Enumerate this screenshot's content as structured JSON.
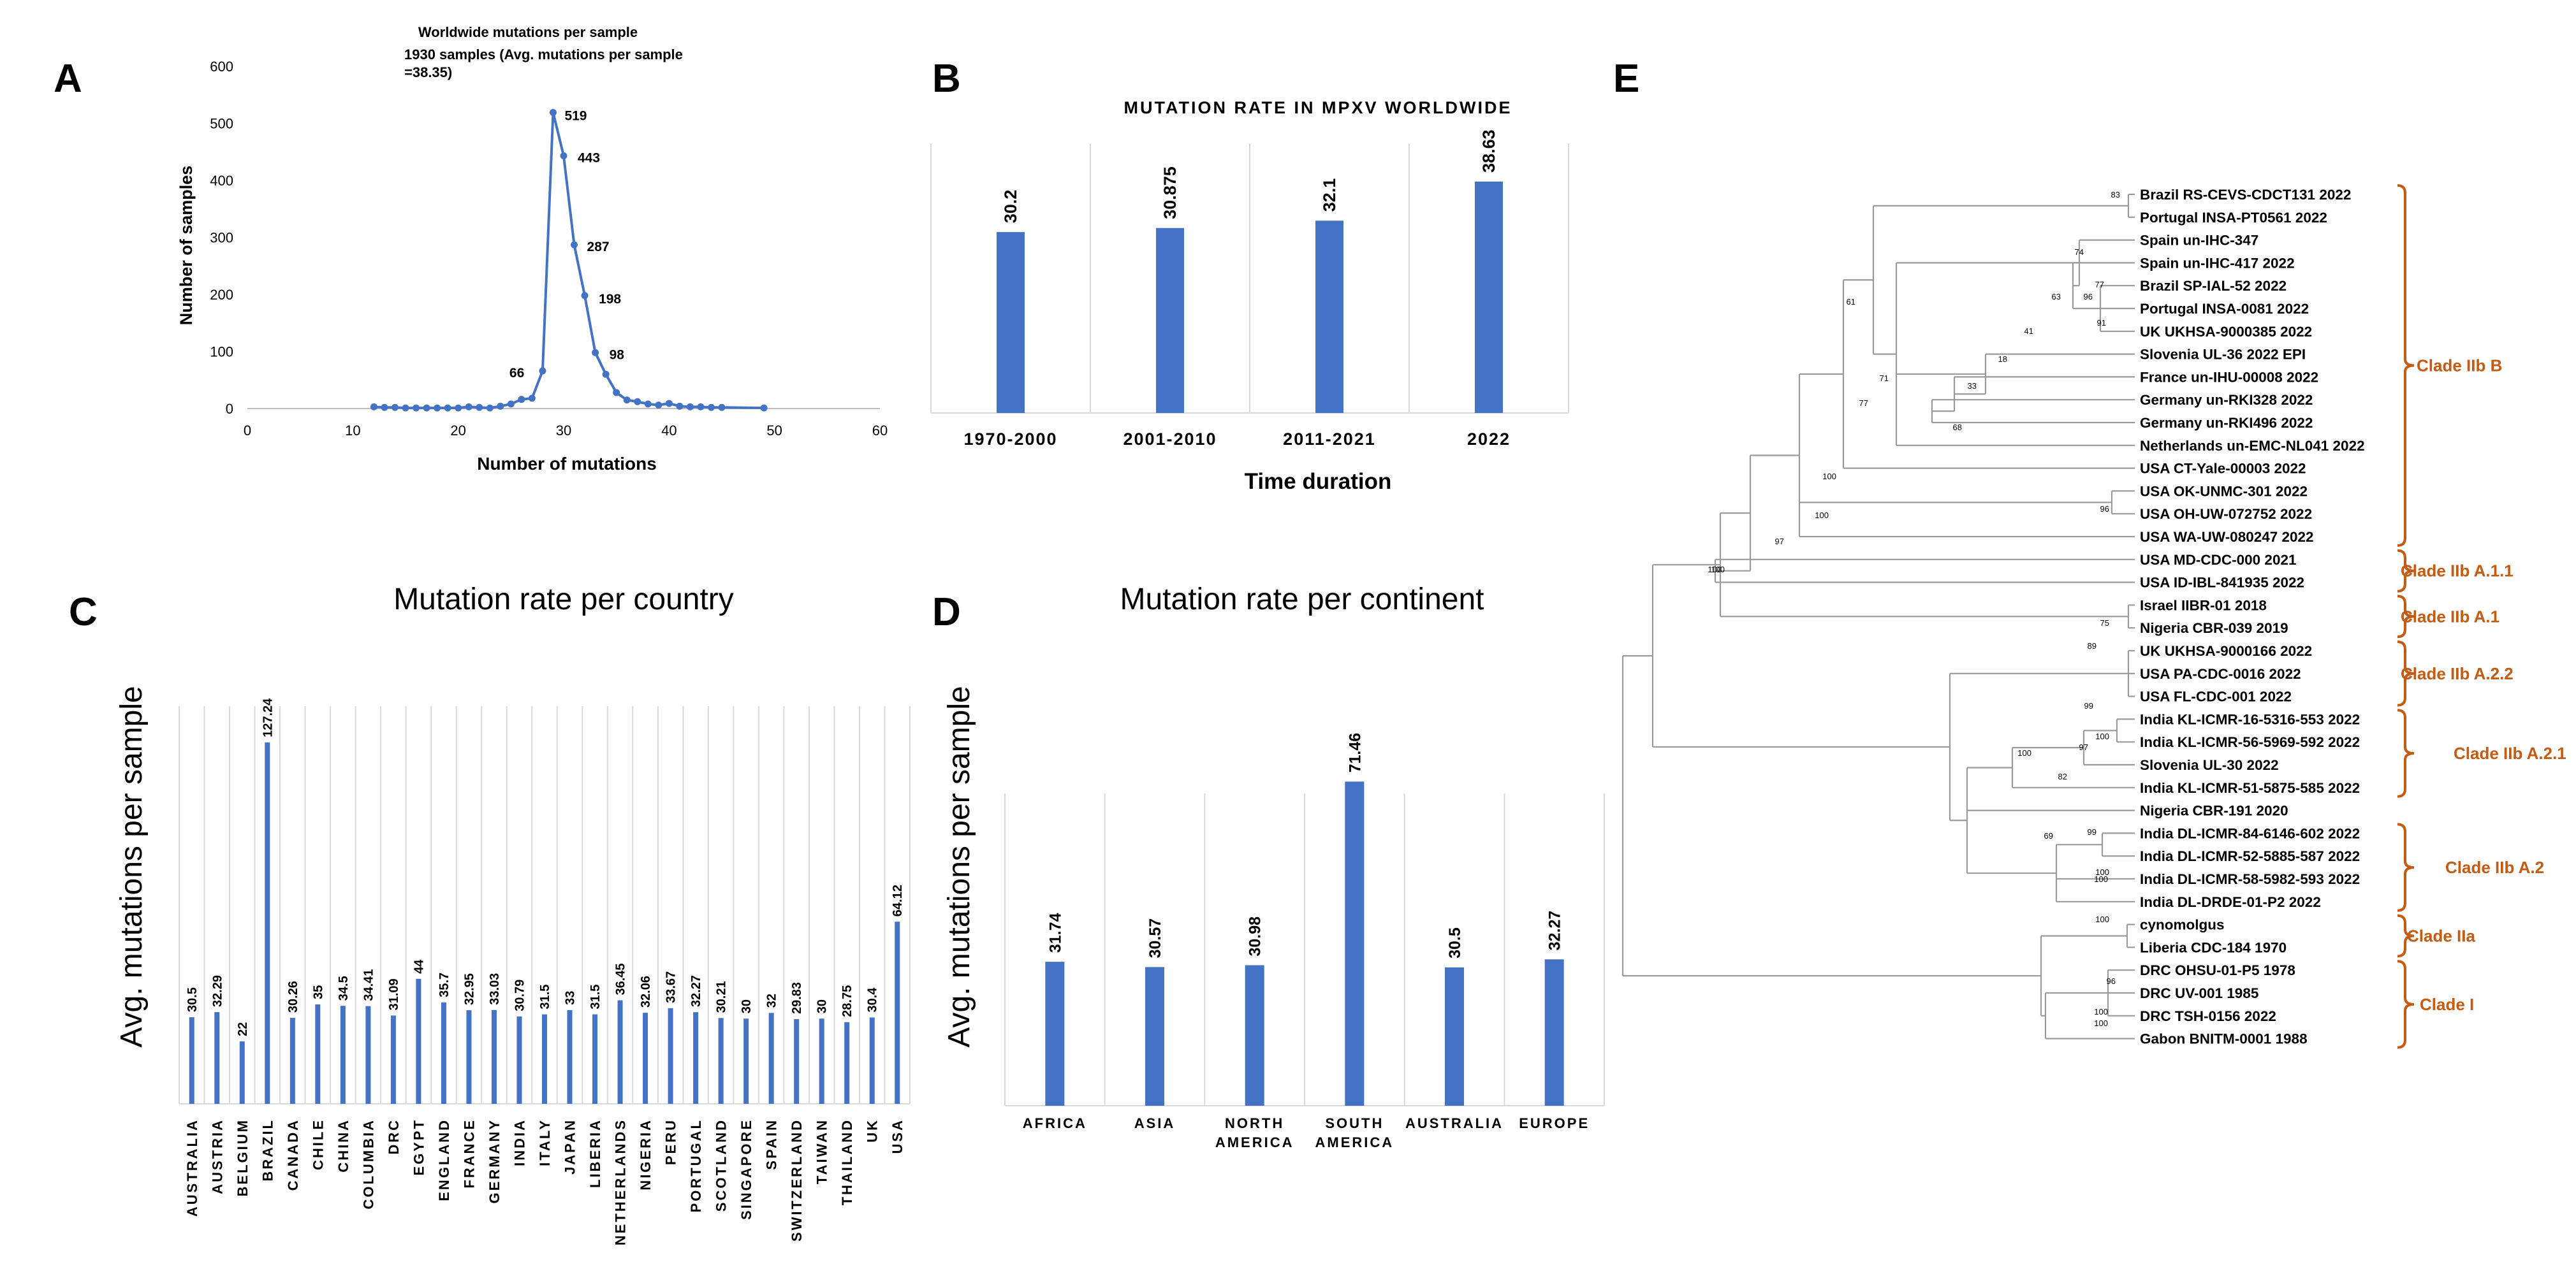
{
  "panel_labels": {
    "a": "A",
    "b": "B",
    "c": "C",
    "d": "D",
    "e": "E"
  },
  "chart_data": [
    {
      "id": "A",
      "type": "line",
      "title": "Worldwide mutations per sample",
      "subtitle_line1": "1930 samples (Avg. mutations per sample",
      "subtitle_line2": "=38.35)",
      "xlabel": "Number of mutations",
      "ylabel": "Number of samples",
      "xlim": [
        0,
        60
      ],
      "ylim": [
        0,
        600
      ],
      "xticks": [
        0,
        10,
        20,
        30,
        40,
        50,
        60
      ],
      "yticks": [
        0,
        100,
        200,
        300,
        400,
        500,
        600
      ],
      "x": [
        12,
        13,
        14,
        15,
        16,
        17,
        18,
        19,
        20,
        21,
        22,
        23,
        24,
        25,
        26,
        27,
        28,
        29,
        30,
        31,
        32,
        33,
        34,
        35,
        36,
        37,
        38,
        39,
        40,
        41,
        42,
        43,
        44,
        45,
        49
      ],
      "y": [
        3,
        2,
        2,
        1,
        1,
        1,
        1,
        1,
        1,
        3,
        2,
        1,
        4,
        8,
        16,
        18,
        66,
        519,
        443,
        287,
        198,
        98,
        60,
        28,
        15,
        12,
        8,
        6,
        9,
        4,
        3,
        3,
        2,
        2,
        1
      ],
      "data_labels": [
        {
          "x": 28,
          "y": 66,
          "text": "66"
        },
        {
          "x": 29,
          "y": 519,
          "text": "519"
        },
        {
          "x": 30,
          "y": 443,
          "text": "443"
        },
        {
          "x": 31,
          "y": 287,
          "text": "287"
        },
        {
          "x": 32,
          "y": 198,
          "text": "198"
        },
        {
          "x": 33,
          "y": 98,
          "text": "98"
        }
      ],
      "color": "#4472c4"
    },
    {
      "id": "B",
      "type": "bar",
      "title": "MUTATION RATE IN MPXV WORLDWIDE",
      "xlabel": "Time duration",
      "categories": [
        "1970-2000",
        "2001-2010",
        "2011-2021",
        "2022"
      ],
      "values": [
        30.2,
        30.875,
        32.1,
        38.63
      ],
      "labels": [
        "30.2",
        "30.875",
        "32.1",
        "38.63"
      ],
      "ylim": [
        0,
        45
      ],
      "color": "#4472c4"
    },
    {
      "id": "C",
      "type": "bar",
      "title": "Mutation rate per country",
      "ylabel": "Avg. mutations per sample",
      "categories": [
        "AUSTRALIA",
        "AUSTRIA",
        "BELGIUM",
        "BRAZIL",
        "CANADA",
        "CHILE",
        "CHINA",
        "COLUMBIA",
        "DRC",
        "EGYPT",
        "ENGLAND",
        "FRANCE",
        "GERMANY",
        "INDIA",
        "ITALY",
        "JAPAN",
        "LIBERIA",
        "NETHERLANDS",
        "NIGERIA",
        "PERU",
        "PORTUGAL",
        "SCOTLAND",
        "SINGAPORE",
        "SPAIN",
        "SWITZERLAND",
        "TAIWAN",
        "THAILAND",
        "UK",
        "USA"
      ],
      "values": [
        30.5,
        32.29,
        22,
        127.24,
        30.26,
        35,
        34.5,
        34.41,
        31.09,
        44,
        35.7,
        32.95,
        33.03,
        30.79,
        31.5,
        33,
        31.5,
        36.45,
        32.06,
        33.67,
        32.27,
        30.21,
        30,
        32,
        29.83,
        30,
        28.75,
        30.4,
        64.12
      ],
      "labels": [
        "30.5",
        "32.29",
        "22",
        "127.24",
        "30.26",
        "35",
        "34.5",
        "34.41",
        "31.09",
        "44",
        "35.7",
        "32.95",
        "33.03",
        "30.79",
        "31.5",
        "33",
        "31.5",
        "36.45",
        "32.06",
        "33.67",
        "32.27",
        "30.21",
        "30",
        "32",
        "29.83",
        "30",
        "28.75",
        "30.4",
        "64.12"
      ],
      "ylim": [
        0,
        140
      ],
      "color": "#4472c4"
    },
    {
      "id": "D",
      "type": "bar",
      "title": "Mutation rate per continent",
      "ylabel": "Avg. mutations per sample",
      "categories": [
        [
          "AFRICA"
        ],
        [
          "ASIA"
        ],
        [
          "NORTH",
          "AMERICA"
        ],
        [
          "SOUTH",
          "AMERICA"
        ],
        [
          "AUSTRALIA"
        ],
        [
          "EUROPE"
        ]
      ],
      "values": [
        31.74,
        30.57,
        30.98,
        71.46,
        30.5,
        32.27
      ],
      "labels": [
        "31.74",
        "30.57",
        "30.98",
        "71.46",
        "30.5",
        "32.27"
      ],
      "ylim": [
        0,
        85
      ],
      "color": "#4472c4"
    }
  ],
  "tree": {
    "tips": [
      "Brazil RS-CEVS-CDCT131 2022",
      "Portugal INSA-PT0561 2022",
      "Spain un-IHC-347",
      "Spain un-IHC-417 2022",
      "Brazil SP-IAL-52 2022",
      "Portugal INSA-0081 2022",
      "UK UKHSA-9000385 2022",
      "Slovenia UL-36 2022 EPI",
      "France un-IHU-00008 2022",
      "Germany un-RKI328 2022",
      "Germany un-RKI496 2022",
      "Netherlands un-EMC-NL041 2022",
      "USA CT-Yale-00003 2022",
      "USA OK-UNMC-301 2022",
      "USA OH-UW-072752 2022",
      "USA WA-UW-080247 2022",
      "USA MD-CDC-000 2021",
      "USA ID-IBL-841935 2022",
      "Israel IIBR-01 2018",
      "Nigeria CBR-039 2019",
      "UK UKHSA-9000166 2022",
      "USA PA-CDC-0016 2022",
      "USA FL-CDC-001 2022",
      "India KL-ICMR-16-5316-553 2022",
      "India KL-ICMR-56-5969-592 2022",
      "Slovenia UL-30 2022",
      "India KL-ICMR-51-5875-585 2022",
      "Nigeria CBR-191 2020",
      "India DL-ICMR-84-6146-602 2022",
      "India DL-ICMR-52-5885-587 2022",
      "India DL-ICMR-58-5982-593 2022",
      "India DL-DRDE-01-P2 2022",
      "cynomolgus",
      "Liberia CDC-184 1970",
      "DRC OHSU-01-P5 1978",
      "DRC UV-001 1985",
      "DRC TSH-0156 2022",
      "Gabon BNITM-0001 1988"
    ],
    "bootstrap": [
      "83",
      "74",
      "77",
      "96",
      "91",
      "63",
      "41",
      "61",
      "18",
      "33",
      "68",
      "71",
      "77",
      "100",
      "96",
      "100",
      "97",
      "100",
      "75",
      "100",
      "89",
      "99",
      "100",
      "97",
      "82",
      "100",
      "69",
      "99",
      "100",
      "100",
      "100",
      "100",
      "96",
      "100"
    ],
    "clades": [
      "Clade IIb B",
      "Clade IIb A.1.1",
      "Clade IIb A.1",
      "Clade IIb A.2.2",
      "Clade IIb A.2.1",
      "Clade IIb A.2",
      "Clade IIa",
      "Clade I"
    ]
  }
}
